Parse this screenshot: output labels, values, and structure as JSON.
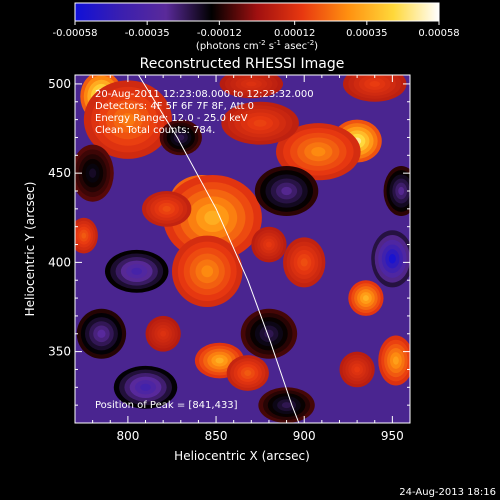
{
  "chart_data": {
    "type": "heatmap",
    "title": "Reconstructed RHESSI Image",
    "xlabel": "Heliocentric X (arcsec)",
    "ylabel": "Heliocentric Y (arcsec)",
    "xlim": [
      770,
      960
    ],
    "ylim": [
      310,
      505
    ],
    "x_ticks": [
      800,
      850,
      900,
      950
    ],
    "y_ticks": [
      350,
      400,
      450,
      500
    ],
    "colorbar": {
      "range": [
        -0.00058,
        0.00058
      ],
      "tick_values": [
        -0.00058,
        -0.00035,
        -0.00012,
        0.00012,
        0.00035,
        0.00058
      ],
      "tick_labels": [
        "-0.00058",
        "-0.00035",
        "-0.00012",
        "0.00012",
        "0.00035",
        "0.00058"
      ],
      "units_main": "(photons cm",
      "units_exp1": "-2",
      "units_mid1": " s",
      "units_exp2": "-1",
      "units_mid2": " asec",
      "units_exp3": "-2",
      "units_end": ")",
      "colors": [
        "#1010d8",
        "#3a1fb0",
        "#5a2a9a",
        "#000000",
        "#a01010",
        "#e83810",
        "#ff9010",
        "#ffd83a",
        "#ffffff"
      ]
    },
    "annotations": {
      "time_range": "20-Aug-2011 12:23:08.000 to 12:23:32.000",
      "detectors": "Detectors: 4F 5F 6F 7F 8F, Att 0",
      "energy": "Energy Range: 12.0 - 25.0 keV",
      "clean": "Clean    Total counts: 784.",
      "peak": "Position of Peak = [841,433]"
    },
    "peak_position": [
      841,
      433
    ],
    "limb_curve": [
      [
        806,
        505
      ],
      [
        828,
        470
      ],
      [
        850,
        430
      ],
      [
        868,
        390
      ],
      [
        881,
        355
      ],
      [
        893,
        320
      ],
      [
        897,
        310
      ]
    ],
    "blobs": [
      {
        "x": 842,
        "y": 435,
        "w": 18,
        "h": 14,
        "v": 0.00058
      },
      {
        "x": 848,
        "y": 425,
        "w": 28,
        "h": 24,
        "v": 0.00035
      },
      {
        "x": 844,
        "y": 390,
        "w": 12,
        "h": 10,
        "v": 0.00052
      },
      {
        "x": 845,
        "y": 395,
        "w": 20,
        "h": 20,
        "v": 0.00028
      },
      {
        "x": 785,
        "y": 493,
        "w": 12,
        "h": 14,
        "v": 0.00055
      },
      {
        "x": 800,
        "y": 480,
        "w": 25,
        "h": 22,
        "v": 0.00025
      },
      {
        "x": 930,
        "y": 468,
        "w": 14,
        "h": 12,
        "v": 0.0005
      },
      {
        "x": 908,
        "y": 462,
        "w": 24,
        "h": 16,
        "v": 0.00028
      },
      {
        "x": 875,
        "y": 478,
        "w": 22,
        "h": 12,
        "v": 0.00016
      },
      {
        "x": 870,
        "y": 500,
        "w": 18,
        "h": 8,
        "v": 0.00012
      },
      {
        "x": 822,
        "y": 430,
        "w": 14,
        "h": 10,
        "v": 0.00018
      },
      {
        "x": 935,
        "y": 380,
        "w": 10,
        "h": 10,
        "v": 0.00036
      },
      {
        "x": 952,
        "y": 345,
        "w": 10,
        "h": 14,
        "v": 0.00032
      },
      {
        "x": 930,
        "y": 340,
        "w": 10,
        "h": 10,
        "v": 0.00014
      },
      {
        "x": 852,
        "y": 345,
        "w": 14,
        "h": 10,
        "v": 0.00035
      },
      {
        "x": 868,
        "y": 338,
        "w": 12,
        "h": 10,
        "v": 0.0002
      },
      {
        "x": 820,
        "y": 360,
        "w": 10,
        "h": 10,
        "v": 0.00012
      },
      {
        "x": 900,
        "y": 400,
        "w": 12,
        "h": 14,
        "v": 0.00018
      },
      {
        "x": 880,
        "y": 410,
        "w": 10,
        "h": 10,
        "v": 0.00014
      },
      {
        "x": 775,
        "y": 415,
        "w": 8,
        "h": 10,
        "v": 0.0002
      },
      {
        "x": 940,
        "y": 500,
        "w": 18,
        "h": 10,
        "v": 0.00015
      },
      {
        "x": 805,
        "y": 395,
        "w": 18,
        "h": 12,
        "v": -0.00038
      },
      {
        "x": 890,
        "y": 440,
        "w": 18,
        "h": 14,
        "v": -0.00028
      },
      {
        "x": 950,
        "y": 402,
        "w": 12,
        "h": 16,
        "v": -0.00055
      },
      {
        "x": 810,
        "y": 330,
        "w": 18,
        "h": 12,
        "v": -0.0004
      },
      {
        "x": 880,
        "y": 360,
        "w": 16,
        "h": 14,
        "v": -0.00022
      },
      {
        "x": 785,
        "y": 360,
        "w": 14,
        "h": 14,
        "v": -0.0003
      },
      {
        "x": 830,
        "y": 470,
        "w": 12,
        "h": 10,
        "v": -0.00022
      },
      {
        "x": 955,
        "y": 440,
        "w": 10,
        "h": 14,
        "v": -0.00028
      },
      {
        "x": 890,
        "y": 320,
        "w": 16,
        "h": 10,
        "v": -0.00022
      },
      {
        "x": 780,
        "y": 450,
        "w": 12,
        "h": 16,
        "v": -0.00018
      }
    ]
  },
  "footer": {
    "timestamp": "24-Aug-2013 18:16"
  }
}
